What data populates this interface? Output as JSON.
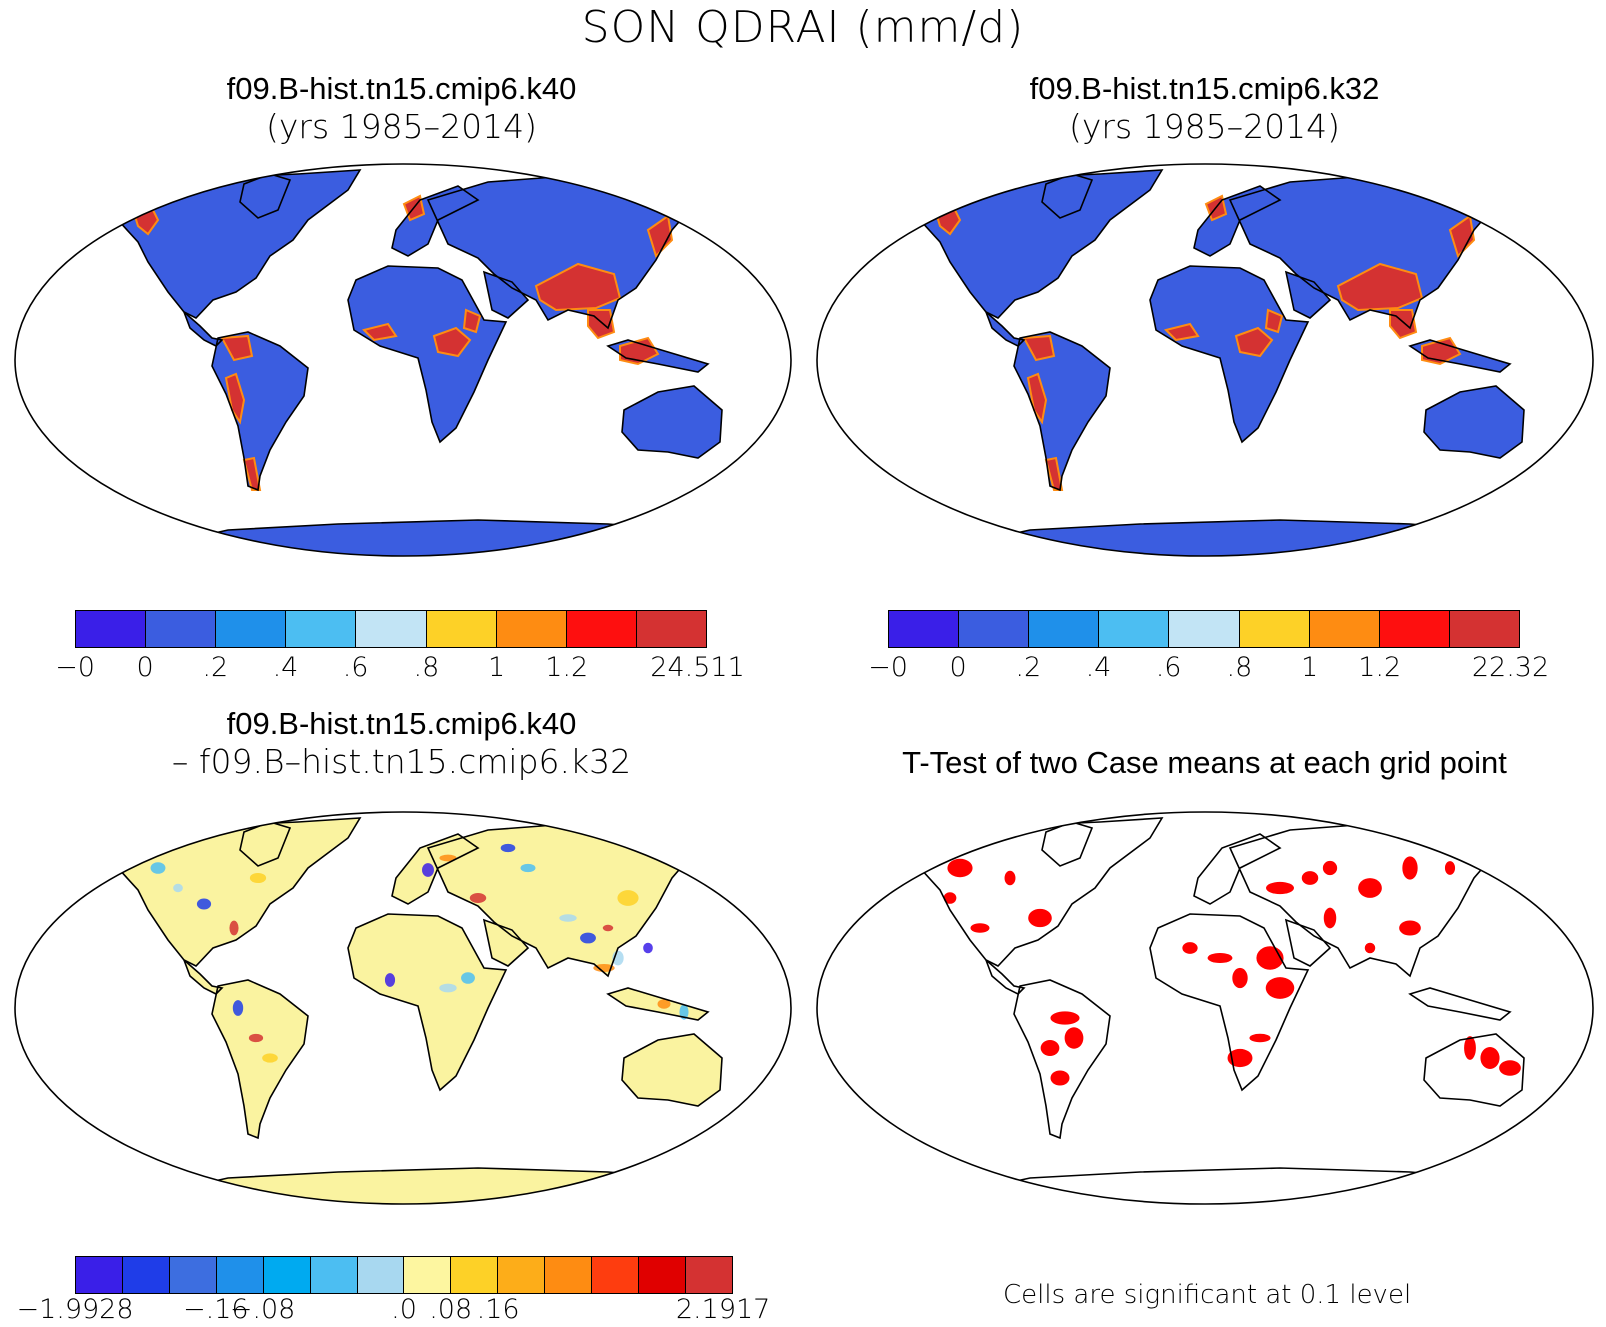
{
  "title": "SON QDRAI (mm/d)",
  "panels": {
    "case1": {
      "title_line1": "f09.B-hist.tn15.cmip6.k40",
      "title_line2": "(yrs 1985–2014)",
      "land_color": "#3b5de0",
      "wet_color": "#d43232"
    },
    "case2": {
      "title_line1": "f09.B-hist.tn15.cmip6.k32",
      "title_line2": "(yrs 1985–2014)",
      "land_color": "#3b5de0",
      "wet_color": "#d43232"
    },
    "diff": {
      "title_line1": "f09.B-hist.tn15.cmip6.k40",
      "title_line2": "– f09.B–hist.tn15.cmip6.k32",
      "land_color": "#faf3a0"
    },
    "ttest": {
      "title": "T-Test of two Case means at each grid point",
      "note": "Cells are significant at 0.1 level",
      "sig_color": "#ff0000"
    }
  },
  "colorbars": {
    "case": {
      "colors": [
        "#3a1fe8",
        "#3b5de0",
        "#1f90ea",
        "#4cbef2",
        "#c2e4f5",
        "#fdd127",
        "#fe8c12",
        "#fe0f0f",
        "#d43232"
      ],
      "labels_case1": [
        "−0",
        "0",
        ".2",
        ".4",
        ".6",
        ".8",
        "1",
        "1.2",
        "24.511"
      ],
      "labels_case2": [
        "−0",
        "0",
        ".2",
        ".4",
        ".6",
        ".8",
        "1",
        "1.2",
        "22.32"
      ]
    },
    "diff": {
      "colors": [
        "#3a1fe8",
        "#1f3de8",
        "#3d6ee0",
        "#1f90ea",
        "#00aaf0",
        "#4cbef2",
        "#a8d8f0",
        "#fdf6a0",
        "#fdd127",
        "#fdad19",
        "#fe8c12",
        "#fe3d0f",
        "#e00000",
        "#d43232"
      ],
      "labels": [
        "−1.9928",
        "−.16",
        "−.08",
        ".0",
        ".08",
        ".16",
        "2.1917"
      ]
    }
  }
}
